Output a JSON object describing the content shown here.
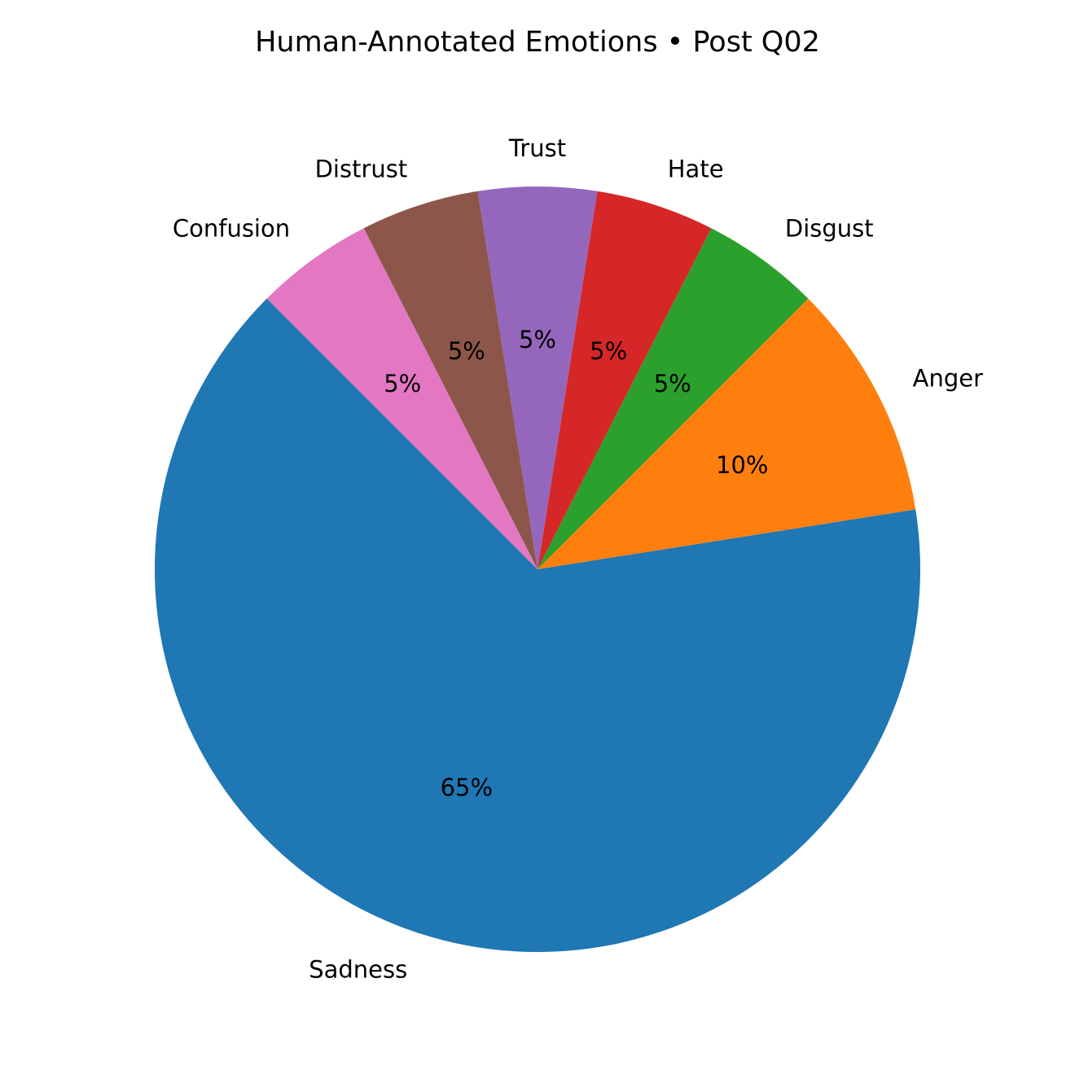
{
  "chart_data": {
    "type": "pie",
    "title": "Human-Annotated Emotions • Post Q02",
    "slices": [
      {
        "label": "Sadness",
        "value": 65,
        "pct_label": "65%",
        "color": "#1f77b4"
      },
      {
        "label": "Anger",
        "value": 10,
        "pct_label": "10%",
        "color": "#ff7f0e"
      },
      {
        "label": "Disgust",
        "value": 5,
        "pct_label": "5%",
        "color": "#2ca02c"
      },
      {
        "label": "Hate",
        "value": 5,
        "pct_label": "5%",
        "color": "#d62728"
      },
      {
        "label": "Trust",
        "value": 5,
        "pct_label": "5%",
        "color": "#9467bd"
      },
      {
        "label": "Distrust",
        "value": 5,
        "pct_label": "5%",
        "color": "#8c564b"
      },
      {
        "label": "Confusion",
        "value": 5,
        "pct_label": "5%",
        "color": "#e377c2"
      }
    ],
    "start_angle_deg": 135,
    "direction": "counterclockwise",
    "legend": "none"
  }
}
